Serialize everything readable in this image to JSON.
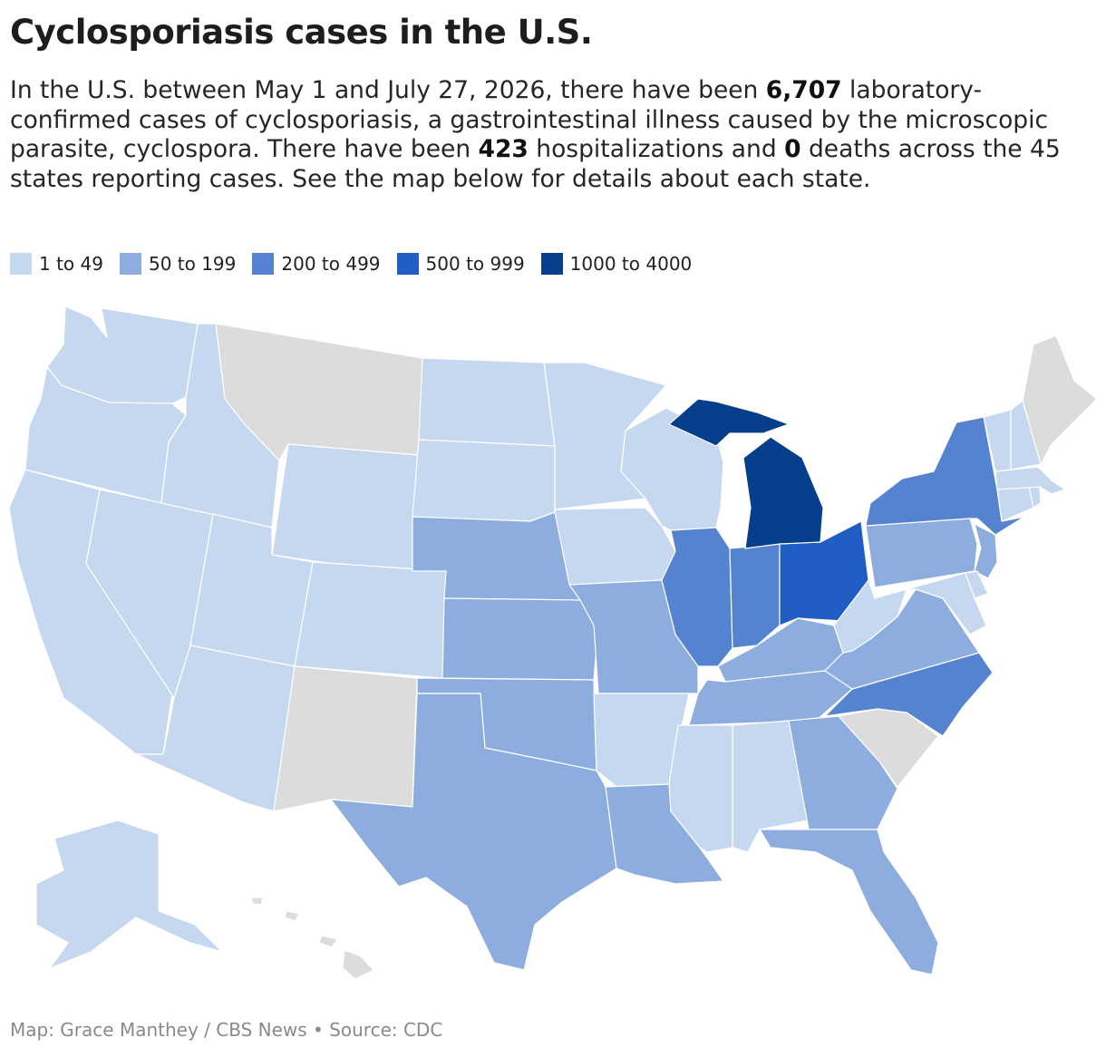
{
  "title": "Cyclosporiasis cases in the U.S.",
  "intro": {
    "t1": "In the U.S. between May 1 and July 27, 2026, there have been ",
    "cases": "6,707",
    "t2": " laboratory-confirmed cases of cyclosporiasis, a gastrointestinal illness caused by the microscopic parasite, cyclospora. There have been ",
    "hosp": "423",
    "t3": " hospitalizations and ",
    "deaths": "0",
    "t4": " deaths across the 45 states reporting cases. See the map below for details about each state."
  },
  "legend": [
    {
      "label": "1 to 49",
      "color": "#c6d7f0"
    },
    {
      "label": "50 to 199",
      "color": "#8eaddf"
    },
    {
      "label": "200 to 499",
      "color": "#5583d0"
    },
    {
      "label": "500 to 999",
      "color": "#215ec4"
    },
    {
      "label": "1000 to 4000",
      "color": "#053e8a"
    }
  ],
  "no_data_color": "#dcdcdc",
  "states": {
    "WA": 0,
    "OR": 0,
    "CA": 0,
    "NV": 0,
    "ID": 0,
    "MT": -1,
    "WY": 0,
    "UT": 0,
    "AZ": 0,
    "CO": 0,
    "NM": -1,
    "ND": 0,
    "SD": 0,
    "NE": 1,
    "KS": 1,
    "OK": 1,
    "TX": 1,
    "MN": 0,
    "IA": 0,
    "MO": 1,
    "AR": 0,
    "LA": 1,
    "WI": 0,
    "MI": 4,
    "IL": 2,
    "IN": 2,
    "OH": 3,
    "KY": 1,
    "TN": 1,
    "MS": 0,
    "AL": 0,
    "GA": 1,
    "FL": 1,
    "SC": -1,
    "NC": 2,
    "VA": 1,
    "WV": 0,
    "PA": 1,
    "NY": 2,
    "NJ": 1,
    "DE": 0,
    "MD": 0,
    "VT": 0,
    "NH": 0,
    "ME": -1,
    "MA": 0,
    "CT": 0,
    "RI": 0,
    "AK": 0,
    "HI": -1
  },
  "credit": "Map: Grace Manthey / CBS News • Source: CDC"
}
